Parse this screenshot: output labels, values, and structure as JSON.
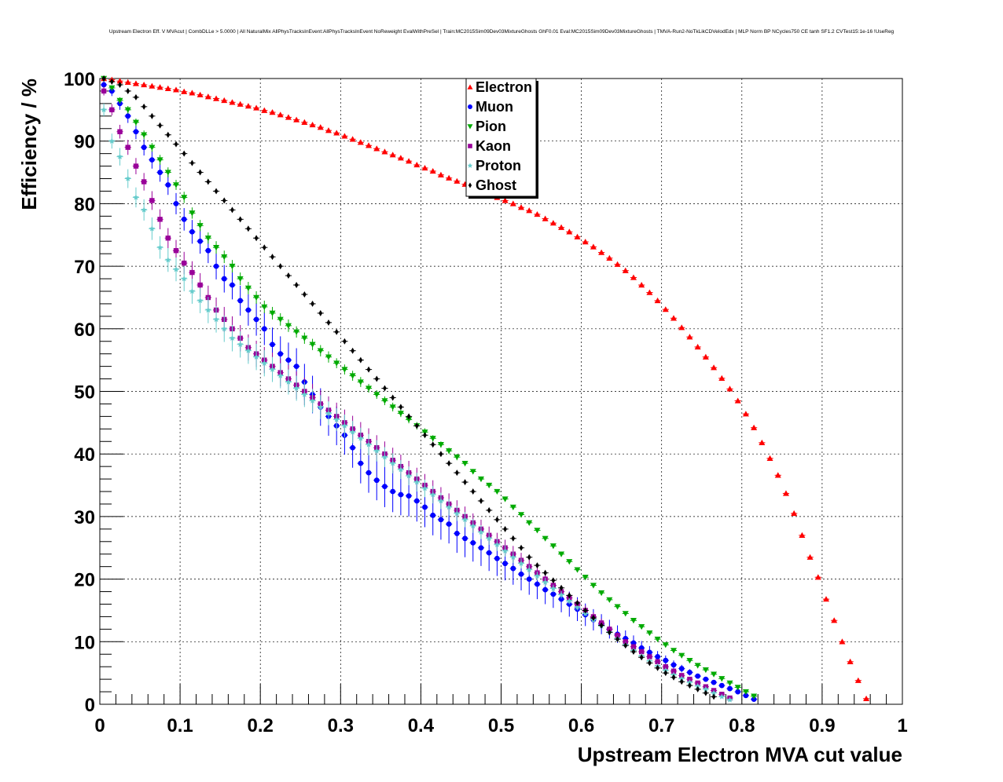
{
  "chart_data": {
    "type": "scatter",
    "title": "Upstream Electron Eff. V MVAcut | CombDLLe > 5.0000 | All NaturalMix AllPhysTracksInEvent:AllPhysTracksInEvent NoReweight EvalWithPreSel | Train:MC2015Sim09Dev03MixtureGhosts GhF0.01 Eval:MC2015Sim09Dev03MixtureGhosts | TMVA-Run2-NoTkLikCDVelodEdx | MLP Norm BP NCycles750 CE tanh SF1.2 CVTest15:1e-16 !UseReg",
    "xlabel": "Upstream Electron MVA cut value",
    "ylabel": "Efficiency / %",
    "xlim": [
      0,
      1
    ],
    "ylim": [
      0,
      100
    ],
    "xticks": [
      "0",
      "0.1",
      "0.2",
      "0.3",
      "0.4",
      "0.5",
      "0.6",
      "0.7",
      "0.8",
      "0.9",
      "1"
    ],
    "yticks": [
      "0",
      "10",
      "20",
      "30",
      "40",
      "50",
      "60",
      "70",
      "80",
      "90",
      "100"
    ],
    "grid": true,
    "legend_placement": "top-center",
    "x": [
      0.005,
      0.015,
      0.025,
      0.035,
      0.045,
      0.055,
      0.065,
      0.075,
      0.085,
      0.095,
      0.105,
      0.115,
      0.125,
      0.135,
      0.145,
      0.155,
      0.165,
      0.175,
      0.185,
      0.195,
      0.205,
      0.215,
      0.225,
      0.235,
      0.245,
      0.255,
      0.265,
      0.275,
      0.285,
      0.295,
      0.305,
      0.315,
      0.325,
      0.335,
      0.345,
      0.355,
      0.365,
      0.375,
      0.385,
      0.395,
      0.405,
      0.415,
      0.425,
      0.435,
      0.445,
      0.455,
      0.465,
      0.475,
      0.485,
      0.495,
      0.505,
      0.515,
      0.525,
      0.535,
      0.545,
      0.555,
      0.565,
      0.575,
      0.585,
      0.595,
      0.605,
      0.615,
      0.625,
      0.635,
      0.645,
      0.655,
      0.665,
      0.675,
      0.685,
      0.695,
      0.705,
      0.715,
      0.725,
      0.735,
      0.745,
      0.755,
      0.765,
      0.775,
      0.785,
      0.795,
      0.805,
      0.815,
      0.825,
      0.835,
      0.845,
      0.855,
      0.865,
      0.875,
      0.885,
      0.895,
      0.905,
      0.915,
      0.925,
      0.935,
      0.945,
      0.955,
      0.965,
      0.975,
      0.985
    ],
    "series": [
      {
        "name": "Electron",
        "color": "#ff0000",
        "marker": "triangle-up",
        "errors": [],
        "values": [
          100,
          99.8,
          99.6,
          99.4,
          99.2,
          99.0,
          98.8,
          98.6,
          98.4,
          98.2,
          97.9,
          97.7,
          97.4,
          97.1,
          96.8,
          96.5,
          96.2,
          95.9,
          95.6,
          95.3,
          94.9,
          94.6,
          94.2,
          93.8,
          93.4,
          93.0,
          92.6,
          92.2,
          91.7,
          91.3,
          90.8,
          90.3,
          89.8,
          89.3,
          88.8,
          88.3,
          87.8,
          87.3,
          86.8,
          86.2,
          85.7,
          85.2,
          84.6,
          84.1,
          83.6,
          83.1,
          82.6,
          82.1,
          81.6,
          81.0,
          80.5,
          80.0,
          79.4,
          78.9,
          78.3,
          77.6,
          76.9,
          76.2,
          75.5,
          74.7,
          73.9,
          73.1,
          72.2,
          71.3,
          70.3,
          69.3,
          68.2,
          67.0,
          65.8,
          64.5,
          63.1,
          61.7,
          60.2,
          58.7,
          57.1,
          55.5,
          53.8,
          52.1,
          50.4,
          48.5,
          46.4,
          44.2,
          41.8,
          39.3,
          36.6,
          33.7,
          30.5,
          27.0,
          23.5,
          20.3,
          16.8,
          13.4,
          10.0,
          6.8,
          3.8,
          0.9
        ]
      },
      {
        "name": "Muon",
        "color": "#0000ff",
        "marker": "circle",
        "errors": [
          0.6,
          0.8,
          1.0,
          1.1,
          1.2,
          1.3,
          1.4,
          1.5,
          1.6,
          1.7,
          1.8,
          1.9,
          2.0,
          2.0,
          2.1,
          2.2,
          2.3,
          2.4,
          2.5,
          2.6,
          2.6,
          2.7,
          2.8,
          2.8,
          2.9,
          2.9,
          3.0,
          3.0,
          3.1,
          3.1,
          3.1,
          3.2,
          3.2,
          3.2,
          3.2,
          3.3,
          3.3,
          3.3,
          3.3,
          3.3,
          3.2,
          3.2,
          3.2,
          3.1,
          3.1,
          3.0,
          3.0,
          2.9,
          2.9,
          2.8,
          2.7,
          2.6,
          2.6,
          2.5,
          2.4,
          2.3,
          2.2,
          2.1,
          2.0,
          1.9,
          1.8,
          1.7,
          1.6,
          1.5,
          1.4,
          1.3,
          1.2,
          1.1,
          1.0,
          0.9,
          0.8,
          0.7,
          0.6,
          0.5,
          0.4,
          0.3
        ],
        "values": [
          99.0,
          98.0,
          96.0,
          94.0,
          91.5,
          89.0,
          87.0,
          85.0,
          83.0,
          80.0,
          77.5,
          75.5,
          74.0,
          72.5,
          70.0,
          68.0,
          67.0,
          64.5,
          63.0,
          61.5,
          60.0,
          57.5,
          56.0,
          55.0,
          54.0,
          51.5,
          49.5,
          47.5,
          46.0,
          44.5,
          43.0,
          41.0,
          38.5,
          37.0,
          35.8,
          34.8,
          34.0,
          33.5,
          33.3,
          32.5,
          31.5,
          30.2,
          29.5,
          28.8,
          27.3,
          26.5,
          25.8,
          25.0,
          24.2,
          23.3,
          22.5,
          21.7,
          20.8,
          20.0,
          19.2,
          18.3,
          17.6,
          16.8,
          16.0,
          15.2,
          14.3,
          13.5,
          12.8,
          12.0,
          11.2,
          10.5,
          9.8,
          9.0,
          8.3,
          7.6,
          7.0,
          6.3,
          5.7,
          5.1,
          4.5,
          4.0,
          3.5,
          3.0,
          2.5,
          2.0,
          1.4,
          0.8
        ]
      },
      {
        "name": "Pion",
        "color": "#00aa00",
        "marker": "triangle-down",
        "errors": [
          0.3,
          0.4,
          0.5,
          0.6,
          0.6,
          0.7,
          0.7,
          0.8,
          0.8,
          0.8,
          0.9,
          0.9,
          0.9,
          0.9,
          1.0,
          1.0,
          1.0,
          1.0,
          1.0,
          1.0,
          1.0,
          1.0,
          1.0,
          1.0,
          0.9,
          0.9,
          0.9,
          0.9,
          0.9,
          0.8,
          0.8,
          0.8,
          0.8,
          0.7,
          0.7,
          0.7,
          0.7,
          0.6,
          0.6,
          0.6,
          0.6,
          0.5,
          0.5,
          0.5,
          0.5,
          0.4,
          0.4,
          0.4,
          0.4,
          0.3,
          0.3,
          0.3,
          0.3,
          0.3,
          0.3,
          0.2
        ],
        "values": [
          100,
          98.5,
          96.5,
          95.0,
          93.0,
          91.0,
          89.0,
          87.0,
          85.0,
          83.0,
          81.0,
          78.5,
          76.5,
          74.5,
          73.0,
          71.5,
          70.0,
          68.0,
          66.5,
          65.0,
          63.5,
          62.5,
          61.5,
          60.5,
          59.5,
          58.5,
          57.5,
          56.5,
          55.5,
          54.5,
          53.5,
          52.5,
          51.5,
          50.5,
          49.5,
          48.5,
          47.5,
          46.5,
          45.5,
          44.5,
          43.5,
          42.5,
          41.5,
          40.5,
          39.5,
          38.5,
          37.2,
          36.0,
          35.0,
          34.0,
          32.8,
          31.5,
          30.3,
          29.0,
          27.8,
          26.5,
          25.3,
          24.0,
          22.8,
          21.5,
          20.3,
          19.0,
          17.8,
          16.7,
          15.6,
          14.5,
          13.4,
          12.4,
          11.4,
          10.4,
          9.5,
          8.6,
          7.8,
          7.0,
          6.2,
          5.5,
          4.8,
          4.1,
          3.4,
          2.7,
          2.0,
          1.3
        ]
      },
      {
        "name": "Kaon",
        "color": "#990099",
        "marker": "square",
        "errors": [
          0.7,
          0.9,
          1.1,
          1.2,
          1.3,
          1.4,
          1.5,
          1.6,
          1.6,
          1.7,
          1.8,
          1.8,
          1.9,
          1.9,
          2.0,
          2.0,
          2.0,
          2.1,
          2.1,
          2.1,
          2.1,
          2.2,
          2.2,
          2.2,
          2.2,
          2.2,
          2.2,
          2.2,
          2.2,
          2.2,
          2.1,
          2.1,
          2.1,
          2.1,
          2.0,
          2.0,
          2.0,
          1.9,
          1.9,
          1.8,
          1.8,
          1.8,
          1.7,
          1.7,
          1.6,
          1.6,
          1.5,
          1.5,
          1.4,
          1.4,
          1.3,
          1.3,
          1.2,
          1.2,
          1.1,
          1.0,
          1.0,
          0.9,
          0.9,
          0.8,
          0.8,
          0.7,
          0.7,
          0.6,
          0.5,
          0.4
        ],
        "values": [
          98.0,
          95.0,
          91.5,
          89.0,
          86.0,
          83.5,
          80.5,
          77.5,
          74.5,
          72.5,
          70.5,
          69.0,
          67.0,
          65.0,
          63.0,
          61.5,
          60.0,
          58.5,
          57.0,
          56.0,
          55.0,
          54.0,
          53.0,
          52.0,
          51.0,
          50.0,
          49.0,
          48.0,
          47.0,
          46.0,
          45.0,
          44.0,
          43.0,
          42.0,
          41.0,
          40.0,
          39.0,
          38.0,
          37.0,
          36.0,
          35.0,
          34.0,
          33.0,
          32.0,
          31.0,
          30.0,
          29.0,
          28.0,
          27.0,
          26.0,
          25.0,
          24.0,
          23.0,
          22.0,
          21.0,
          20.0,
          19.0,
          18.0,
          17.0,
          16.0,
          15.0,
          14.0,
          13.0,
          12.0,
          11.0,
          10.0,
          9.2,
          8.4,
          7.6,
          6.8,
          6.0,
          5.3,
          4.6,
          4.0,
          3.4,
          2.8,
          2.2,
          1.6,
          1.0
        ]
      },
      {
        "name": "Proton",
        "color": "#66cccc",
        "marker": "star",
        "errors": [
          1.0,
          1.2,
          1.4,
          1.5,
          1.6,
          1.7,
          1.8,
          1.8,
          1.9,
          1.9,
          2.0,
          2.0,
          2.0,
          2.1,
          2.1,
          2.1,
          2.1,
          2.1,
          2.1,
          2.1,
          2.1,
          2.0,
          2.0,
          2.0,
          2.0,
          2.0,
          1.9,
          1.9,
          1.9,
          1.8,
          1.8,
          1.8,
          1.7,
          1.7,
          1.7,
          1.6,
          1.6,
          1.5,
          1.5,
          1.5,
          1.4,
          1.4,
          1.3,
          1.3,
          1.2,
          1.2,
          1.1,
          1.1,
          1.0,
          1.0,
          0.9,
          0.9,
          0.8,
          0.8,
          0.7,
          0.7,
          0.6,
          0.6,
          0.5,
          0.5,
          0.4,
          0.4
        ],
        "values": [
          95.0,
          90.0,
          87.5,
          84.0,
          81.0,
          79.0,
          76.0,
          73.0,
          71.0,
          69.5,
          68.0,
          66.0,
          64.5,
          63.0,
          61.5,
          60.0,
          58.5,
          57.5,
          56.5,
          55.5,
          54.5,
          53.5,
          52.5,
          51.5,
          50.5,
          49.5,
          48.5,
          47.5,
          46.5,
          45.5,
          44.5,
          43.5,
          42.5,
          41.5,
          40.5,
          39.5,
          38.5,
          37.5,
          36.5,
          35.5,
          34.5,
          33.5,
          32.5,
          31.5,
          30.5,
          29.5,
          28.5,
          27.5,
          26.5,
          25.5,
          24.5,
          23.5,
          22.5,
          21.5,
          20.5,
          19.5,
          18.5,
          17.5,
          16.5,
          15.5,
          14.5,
          13.5,
          12.5,
          11.5,
          10.5,
          9.5,
          8.6,
          7.7,
          6.9,
          6.1,
          5.4,
          4.7,
          4.1,
          3.5,
          2.9,
          2.4,
          1.8,
          1.2,
          0.7
        ]
      },
      {
        "name": "Ghost",
        "color": "#000000",
        "marker": "diamond",
        "errors": [],
        "values": [
          100,
          99.5,
          99.0,
          98.0,
          97.0,
          95.5,
          94.0,
          92.5,
          91.0,
          89.5,
          88.0,
          86.5,
          85.0,
          83.5,
          82.0,
          80.5,
          79.0,
          77.5,
          76.0,
          74.5,
          73.0,
          71.5,
          70.0,
          68.5,
          67.0,
          65.5,
          64.0,
          62.5,
          61.0,
          59.5,
          58.0,
          56.5,
          55.0,
          53.5,
          52.0,
          50.5,
          49.0,
          47.5,
          46.0,
          44.5,
          43.0,
          41.5,
          40.0,
          38.5,
          37.0,
          35.5,
          34.0,
          32.5,
          31.0,
          29.5,
          28.0,
          26.5,
          25.0,
          23.5,
          22.2,
          21.0,
          19.8,
          18.6,
          17.4,
          16.2,
          15.0,
          13.8,
          12.6,
          11.5,
          10.4,
          9.4,
          8.4,
          7.5,
          6.6,
          5.8,
          5.0,
          4.3,
          3.6,
          3.0,
          2.4,
          1.8,
          1.2
        ]
      }
    ]
  }
}
